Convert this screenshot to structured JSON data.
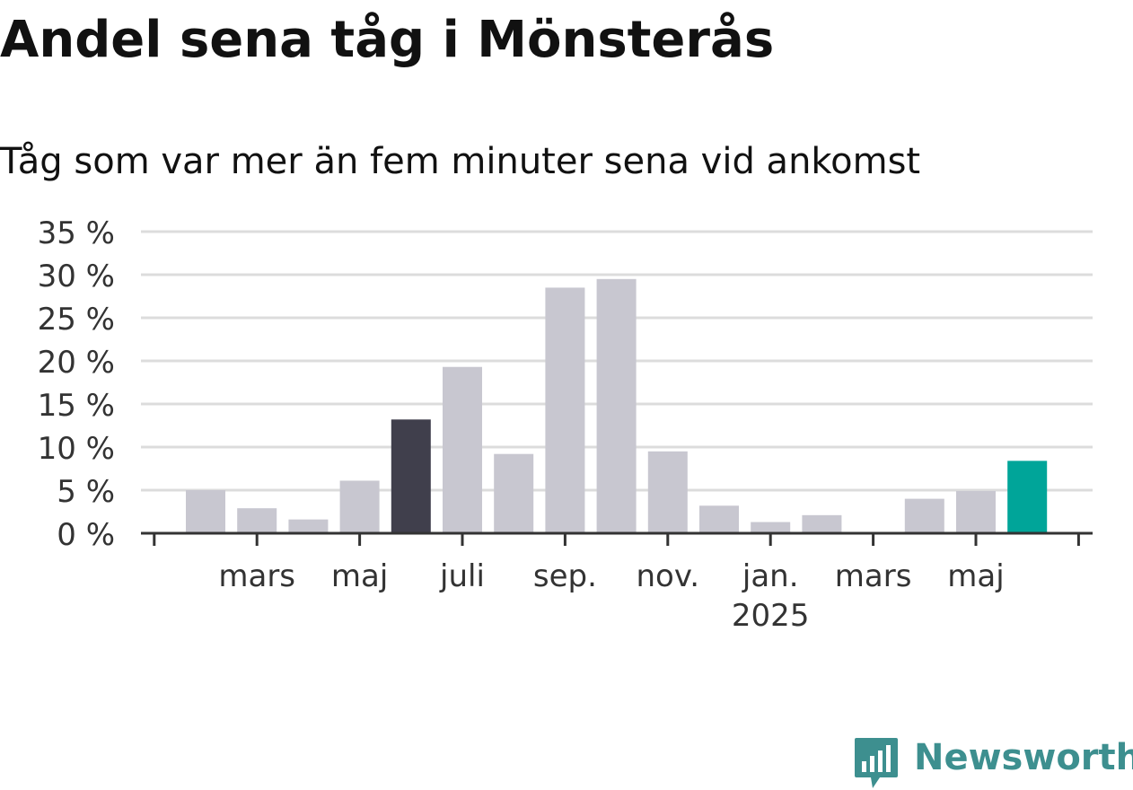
{
  "title": "Andel sena tåg i Mönsterås",
  "subtitle": "Tåg som var mer än fem minuter sena vid ankomst",
  "brand": {
    "name": "Newsworthy",
    "logo_icon": "bar-chart-speech-bubble-icon",
    "color": "#3d8f8f"
  },
  "colors": {
    "bar_default": "#c8c7d0",
    "bar_highlight_dark": "#403f4c",
    "bar_highlight_accent": "#00a599",
    "grid": "#dcdcdc",
    "axis": "#333333",
    "text": "#111111"
  },
  "chart_data": {
    "type": "bar",
    "title": "Andel sena tåg i Mönsterås",
    "subtitle": "Tåg som var mer än fem minuter sena vid ankomst",
    "xlabel": "",
    "ylabel": "",
    "ylim": [
      0,
      35
    ],
    "yticks": [
      0,
      5,
      10,
      15,
      20,
      25,
      30,
      35
    ],
    "ytick_labels": [
      "0 %",
      "5 %",
      "10 %",
      "15 %",
      "20 %",
      "25 %",
      "30 %",
      "35 %"
    ],
    "grid": true,
    "legend": "none",
    "categories": [
      "2024-02",
      "2024-03",
      "2024-04",
      "2024-05",
      "2024-06",
      "2024-07",
      "2024-08",
      "2024-09",
      "2024-10",
      "2024-11",
      "2024-12",
      "2025-01",
      "2025-02",
      "2025-03",
      "2025-04",
      "2025-05",
      "2025-06"
    ],
    "values": [
      5.0,
      2.9,
      1.6,
      6.1,
      13.2,
      19.3,
      9.2,
      28.5,
      29.5,
      9.5,
      3.2,
      1.3,
      2.1,
      0.0,
      4.0,
      4.9,
      8.4
    ],
    "highlights": {
      "2024-06": "dark",
      "2025-06": "accent"
    },
    "x_tick_labels": [
      {
        "category": "2024-03",
        "label": "mars"
      },
      {
        "category": "2024-05",
        "label": "maj"
      },
      {
        "category": "2024-07",
        "label": "juli"
      },
      {
        "category": "2024-09",
        "label": "sep."
      },
      {
        "category": "2024-11",
        "label": "nov."
      },
      {
        "category": "2025-01",
        "label": "jan.",
        "sublabel": "2025"
      },
      {
        "category": "2025-03",
        "label": "mars"
      },
      {
        "category": "2025-05",
        "label": "maj"
      }
    ]
  }
}
